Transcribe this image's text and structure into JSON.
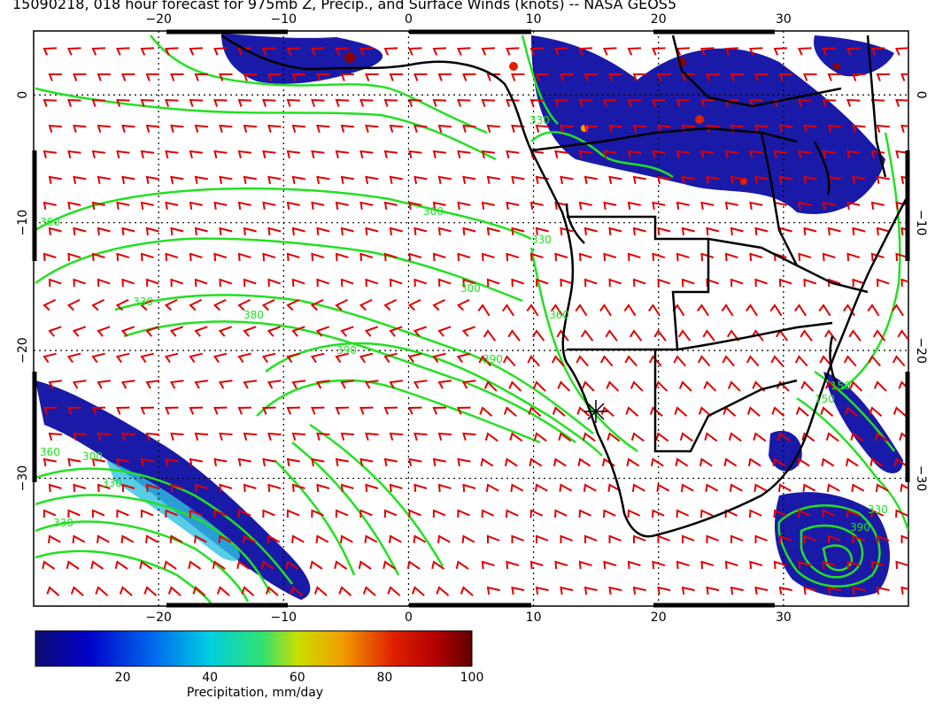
{
  "title": "15090218, 018 hour forecast for 975mb Z, Precip., and Surface Winds (knots) -- NASA GEOS5",
  "map": {
    "lon_ticks": [
      "-20",
      "-10",
      "0",
      "10",
      "20",
      "30"
    ],
    "lat_ticks": [
      "0",
      "-10",
      "-20",
      "-30"
    ],
    "lon_range": [
      -30,
      40
    ],
    "lat_range": [
      -40,
      5
    ],
    "contour_labels": [
      "360",
      "330",
      "300",
      "330",
      "330",
      "360",
      "380",
      "390",
      "300",
      "330",
      "300",
      "150",
      "330",
      "390",
      "360",
      "330",
      "390",
      "150"
    ],
    "colors": {
      "contour": "#22e022",
      "wind_barb": "#e00000",
      "coast": "#000000",
      "precip_low": "#1a1aa8",
      "precip_mid": "#30c0e0",
      "precip_high": "#8b0000"
    }
  },
  "colorbar": {
    "ticks": [
      "20",
      "40",
      "60",
      "80",
      "100"
    ],
    "tick_values": [
      20,
      40,
      60,
      80,
      100
    ],
    "range": [
      0,
      100
    ],
    "label": "Precipitation, mm/day"
  }
}
